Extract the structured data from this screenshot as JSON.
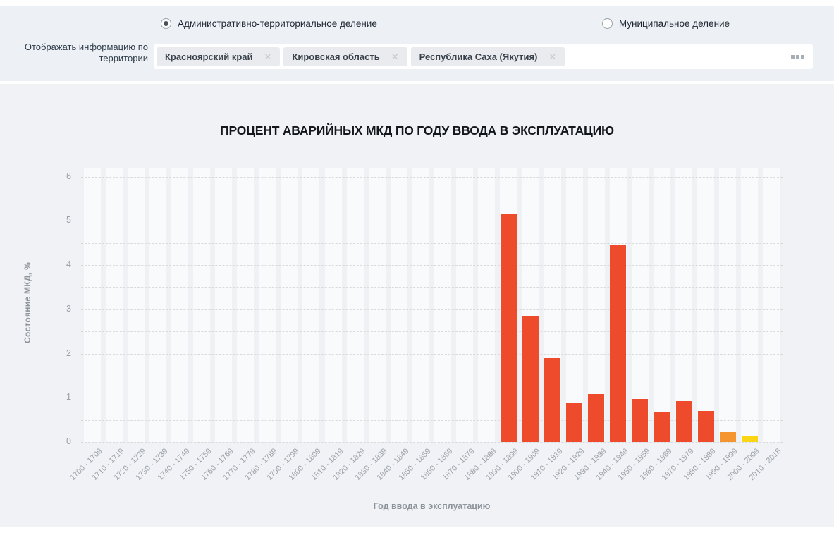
{
  "filter_panel": {
    "territory_label": "Отображать информацию по территории",
    "radios": [
      {
        "label": "Административно-территориальное деление",
        "selected": true
      },
      {
        "label": "Муниципальное деление",
        "selected": false
      }
    ],
    "chips": [
      {
        "label": "Красноярский край",
        "close_icon": "✕"
      },
      {
        "label": "Кировская область",
        "close_icon": "✕"
      },
      {
        "label": "Республика Саха (Якутия)",
        "close_icon": "✕"
      }
    ]
  },
  "chart_data": {
    "type": "bar",
    "title": "ПРОЦЕНТ АВАРИЙНЫХ МКД ПО ГОДУ ВВОДА В ЭКСПЛУАТАЦИЮ",
    "xlabel": "Год ввода в эксплуатацию",
    "ylabel": "Состояние МКД, %",
    "ylim": [
      0,
      6.2
    ],
    "ytick_step": 1,
    "grid_step": 0.5,
    "grid": true,
    "legend_position": "none",
    "categories": [
      "1700 - 1709",
      "1710 - 1719",
      "1720 - 1729",
      "1730 - 1739",
      "1740 - 1749",
      "1750 - 1759",
      "1760 - 1769",
      "1770 - 1779",
      "1780 - 1789",
      "1790 - 1799",
      "1800 - 1809",
      "1810 - 1819",
      "1820 - 1829",
      "1830 - 1839",
      "1840 - 1849",
      "1850 - 1859",
      "1860 - 1869",
      "1870 - 1879",
      "1880 - 1889",
      "1890 - 1899",
      "1900 - 1909",
      "1910 - 1919",
      "1920 - 1929",
      "1930 - 1939",
      "1940 - 1949",
      "1950 - 1959",
      "1960 - 1969",
      "1970 - 1979",
      "1980 - 1989",
      "1990 - 1999",
      "2000 - 2009",
      "2010 - 2018"
    ],
    "values": [
      0,
      0,
      0,
      0,
      0,
      0,
      0,
      0,
      0,
      0,
      0,
      0,
      0,
      0,
      0,
      0,
      0,
      0,
      0,
      5.17,
      2.86,
      1.9,
      0.87,
      1.08,
      4.44,
      0.97,
      0.69,
      0.93,
      0.7,
      0.23,
      0.15,
      0
    ],
    "bar_color_default": "#ee4b2c",
    "bar_color_overrides": {
      "1990 - 1999": "#f4952f",
      "2000 - 2009": "#fdd517"
    }
  }
}
